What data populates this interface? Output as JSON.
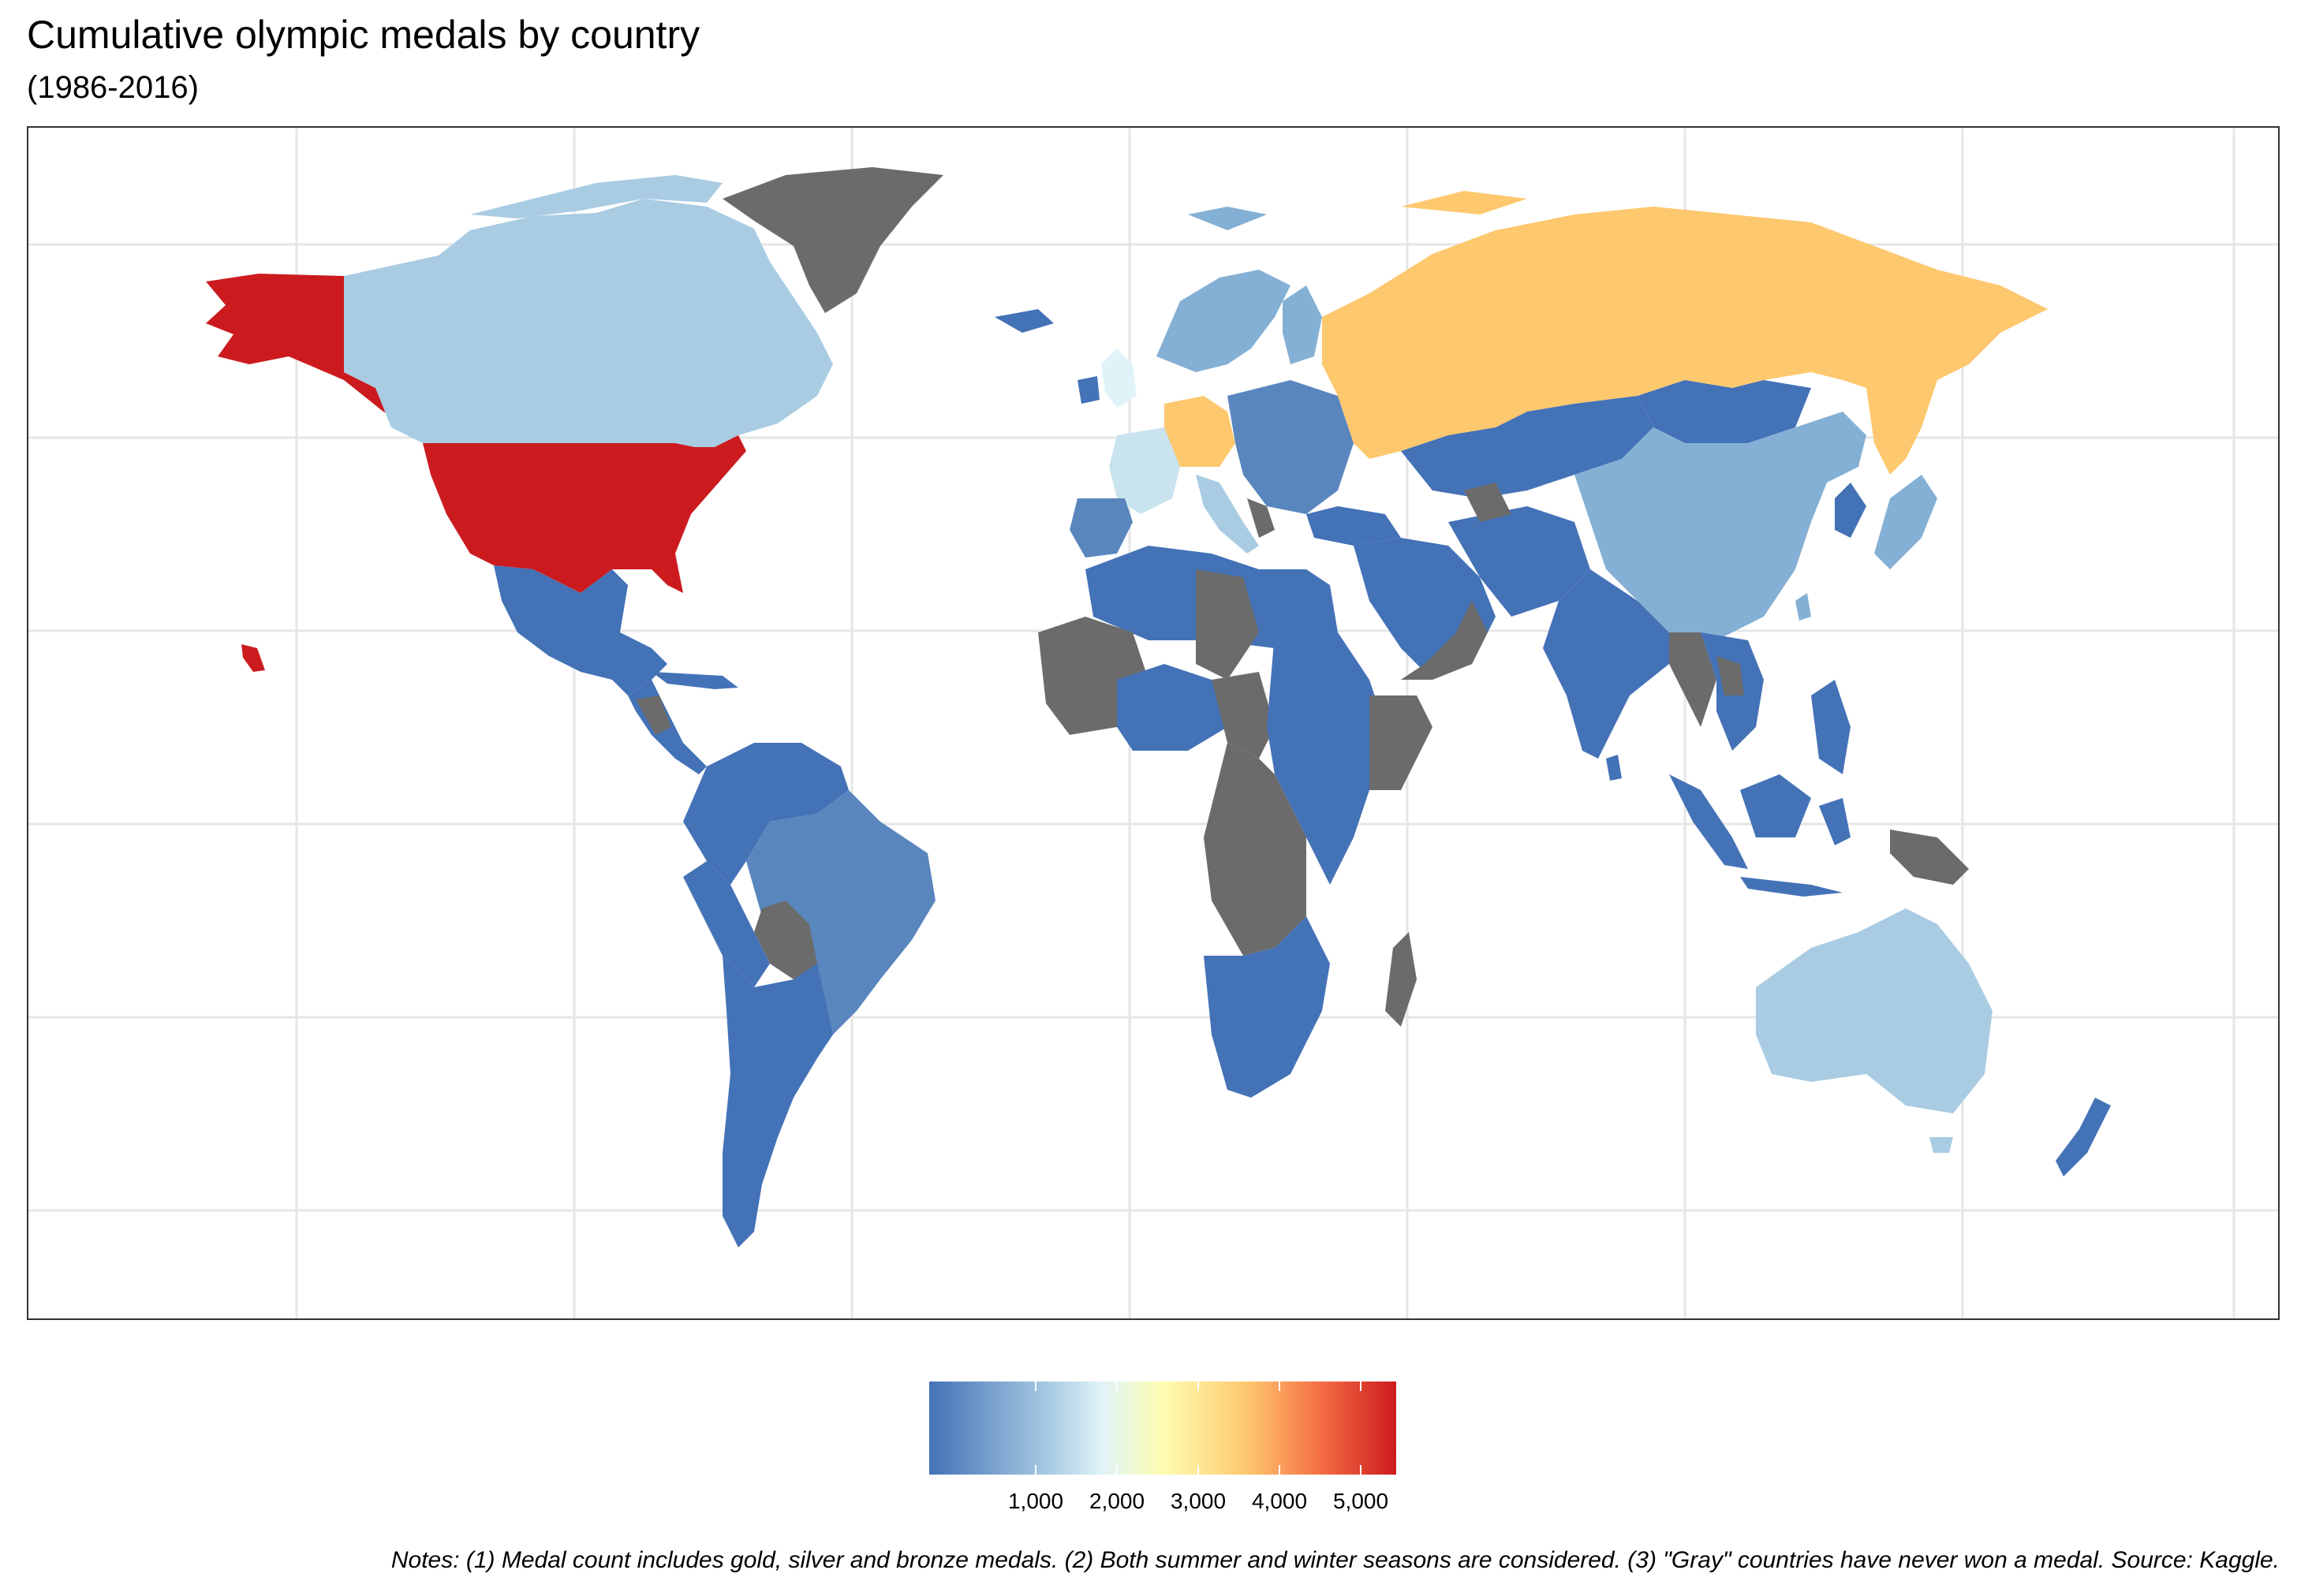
{
  "title": "Cumulative olympic medals by country",
  "subtitle": "(1986-2016)",
  "notes": "Notes: (1) Medal count includes gold, silver and bronze medals. (2) Both summer and winter seasons are considered. (3) \"Gray\" countries have never won a medal. Source: Kaggle.",
  "colors": {
    "no_medal": "#6b6b6b",
    "scale": [
      "#4472b7",
      "#a9cce3",
      "#e0f3f8",
      "#fdfdb0",
      "#fec86f",
      "#f46d43",
      "#cc1b1f"
    ]
  },
  "legend": {
    "ticks": [
      "1,000",
      "2,000",
      "3,000",
      "4,000",
      "5,000"
    ]
  },
  "map_data": {
    "metric": "cumulative medal count (gold+silver+bronze)",
    "scale_range": [
      0,
      5700
    ],
    "regions": [
      {
        "name": "United States",
        "level": "highest"
      },
      {
        "name": "Russia",
        "level": "high"
      },
      {
        "name": "Germany",
        "level": "mid-high"
      },
      {
        "name": "Canada",
        "level": "mid-low"
      },
      {
        "name": "Australia",
        "level": "mid-low"
      },
      {
        "name": "China",
        "level": "low-mid"
      },
      {
        "name": "Greenland",
        "level": "no medal"
      }
    ]
  }
}
